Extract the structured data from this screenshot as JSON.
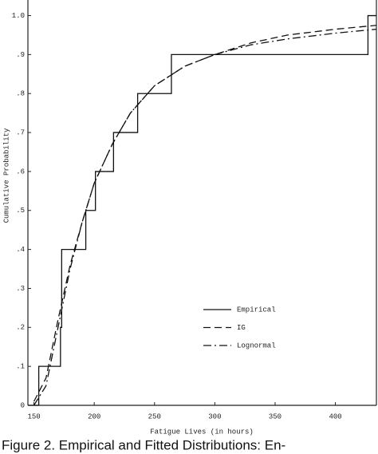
{
  "chart_data": {
    "type": "line",
    "y_label": "Cumulative Probability",
    "x_label": "Fatigue Lives (in hours)",
    "caption": "Figure 2. Empirical and Fitted Distributions: En-",
    "xlim": [
      145,
      434
    ],
    "xticks": [
      150,
      200,
      250,
      300,
      350,
      400
    ],
    "ylim": [
      0,
      1.04
    ],
    "yticks": [
      0,
      {
        "value": 0.1,
        "label": ".1"
      },
      {
        "value": 0.2,
        "label": ".2"
      },
      {
        "value": 0.3,
        "label": ".3"
      },
      {
        "value": 0.4,
        "label": ".4"
      },
      {
        "value": 0.5,
        "label": ".5"
      },
      {
        "value": 0.6,
        "label": ".6"
      },
      {
        "value": 0.7,
        "label": ".7"
      },
      {
        "value": 0.8,
        "label": ".8"
      },
      {
        "value": 0.9,
        "label": ".9"
      },
      {
        "value": 1.0,
        "label": "1.0"
      }
    ],
    "grid": false,
    "legend": "lower right",
    "series": [
      {
        "name": "Empirical",
        "color": "#111111",
        "dash": "solid",
        "step": "post",
        "x": [
          145,
          154,
          172,
          173,
          193,
          201,
          216,
          236,
          264,
          427,
          434
        ],
        "values": [
          0,
          0.1,
          0.2,
          0.4,
          0.5,
          0.6,
          0.7,
          0.8,
          0.9,
          1.0,
          1.0
        ]
      },
      {
        "name": "IG",
        "color": "#111111",
        "dash": "dashed",
        "x": [
          150,
          160,
          170,
          180,
          190,
          200,
          215,
          230,
          250,
          275,
          300,
          330,
          360,
          400,
          434
        ],
        "values": [
          0.01,
          0.07,
          0.22,
          0.36,
          0.47,
          0.57,
          0.67,
          0.75,
          0.82,
          0.87,
          0.9,
          0.93,
          0.95,
          0.965,
          0.975
        ]
      },
      {
        "name": "Lognormal",
        "color": "#111111",
        "dash": "dashdot",
        "x": [
          150,
          160,
          170,
          180,
          190,
          200,
          215,
          230,
          250,
          275,
          300,
          330,
          360,
          400,
          434
        ],
        "values": [
          0.0,
          0.05,
          0.2,
          0.35,
          0.47,
          0.57,
          0.67,
          0.75,
          0.82,
          0.87,
          0.9,
          0.925,
          0.94,
          0.955,
          0.965
        ]
      }
    ]
  }
}
